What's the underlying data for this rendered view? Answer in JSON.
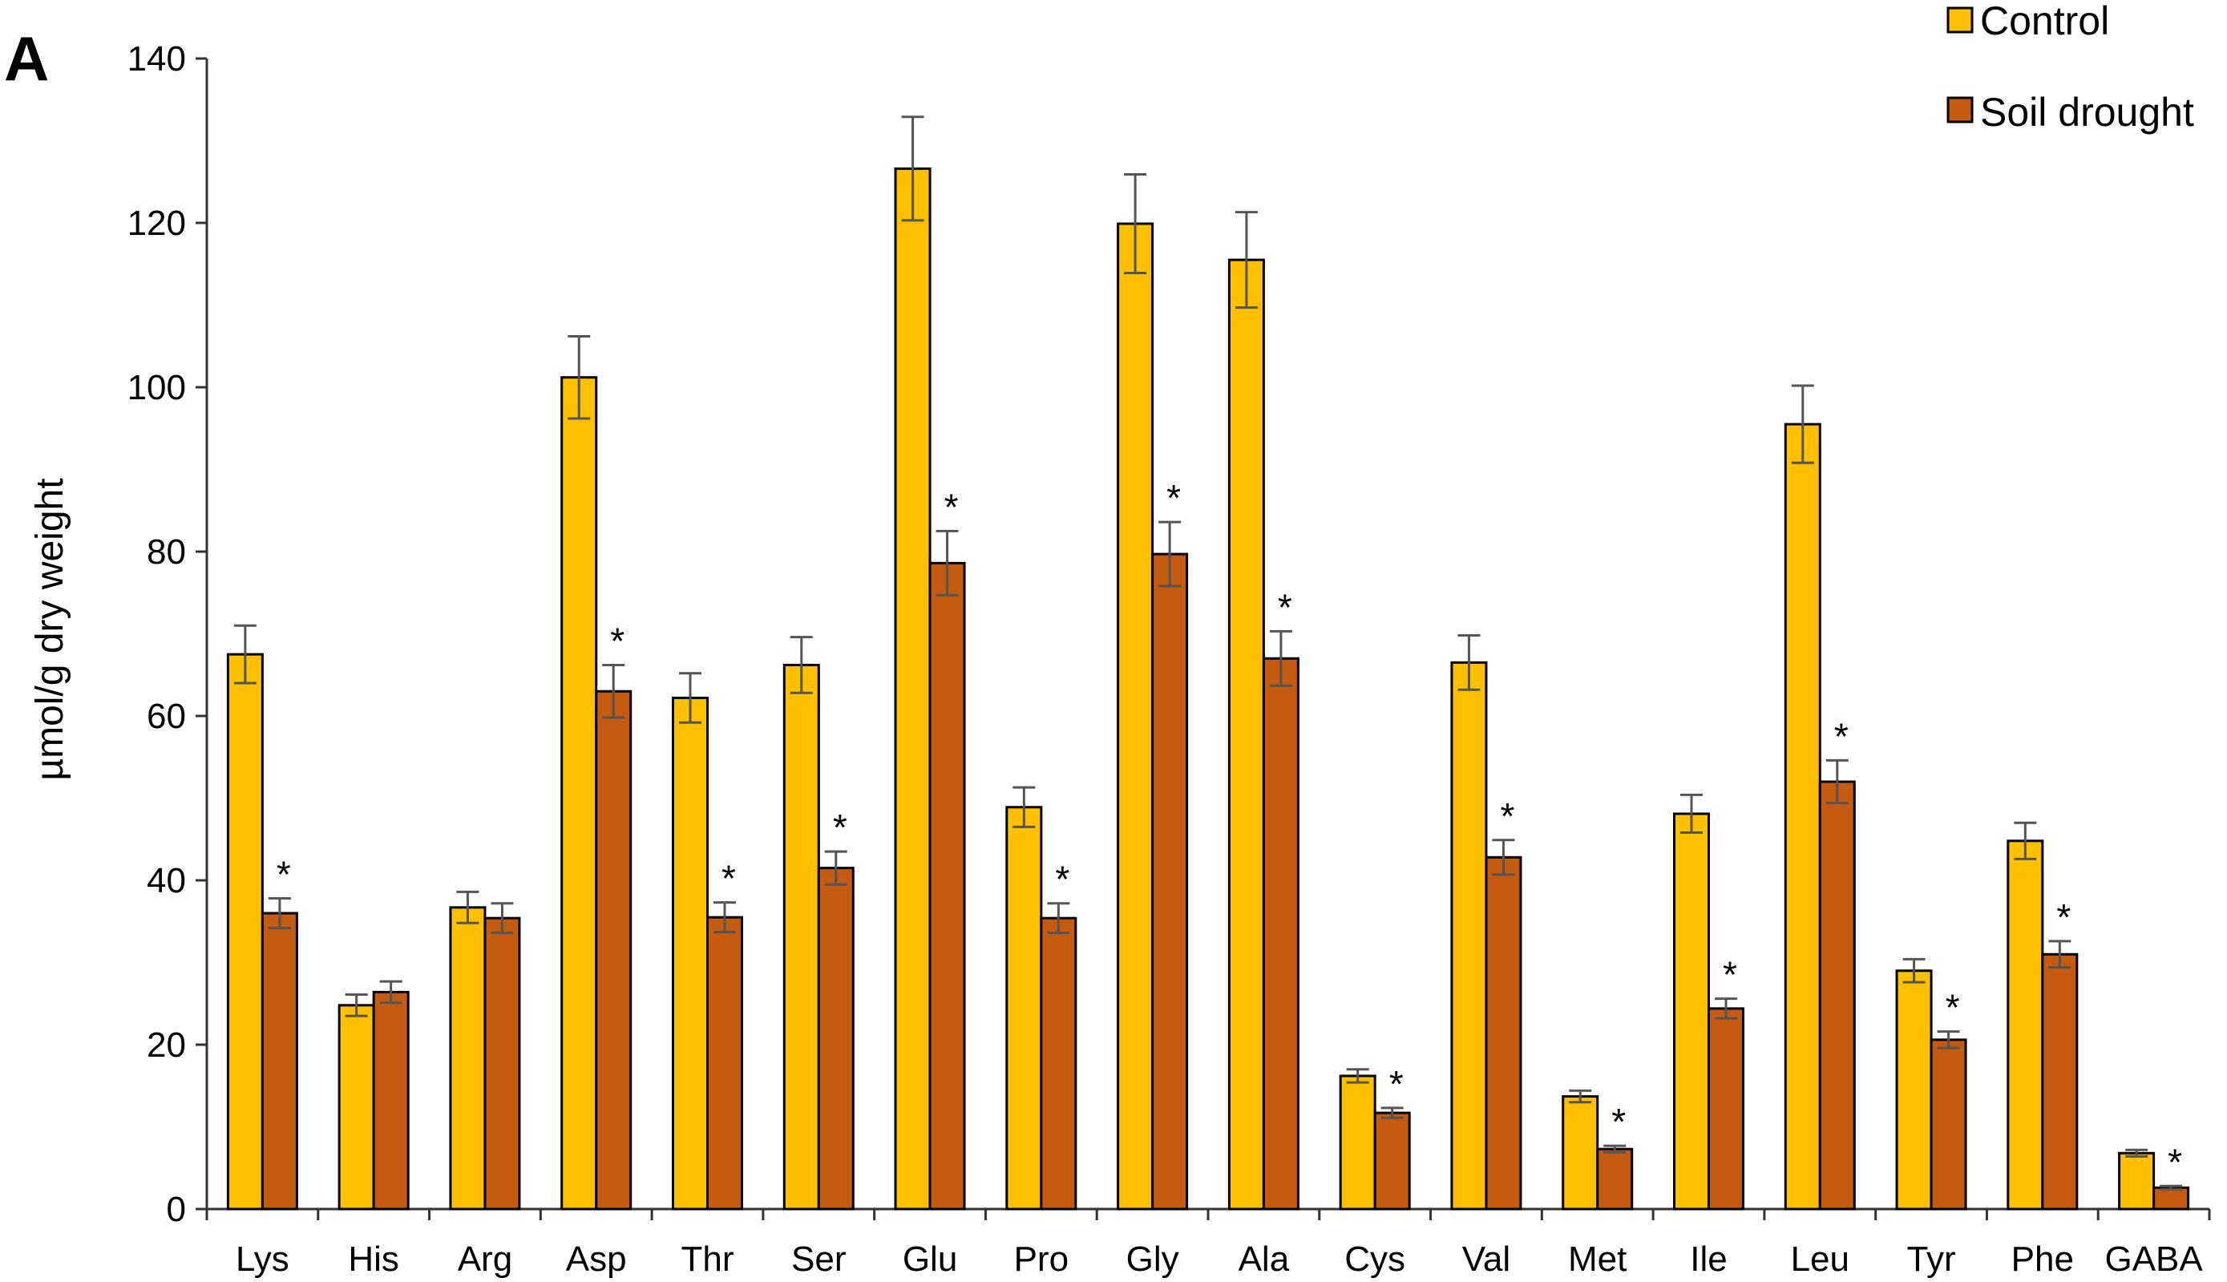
{
  "chart_data": {
    "type": "bar",
    "panel_label": "A",
    "title": "",
    "xlabel": "",
    "ylabel": "µmol/g dry weight",
    "ylim": [
      0,
      140
    ],
    "yticks": [
      0,
      20,
      40,
      60,
      80,
      100,
      120,
      140
    ],
    "ytick_labels": [
      "0",
      "20",
      "40",
      "60",
      "80",
      "100",
      "120",
      "140"
    ],
    "grid": false,
    "legend_position": "top-right",
    "significance_marker": "*",
    "categories": [
      "Lys",
      "His",
      "Arg",
      "Asp",
      "Thr",
      "Ser",
      "Glu",
      "Pro",
      "Gly",
      "Ala",
      "Cys",
      "Val",
      "Met",
      "Ile",
      "Leu",
      "Tyr",
      "Phe",
      "GABA"
    ],
    "series": [
      {
        "name": "Control",
        "color": "#FFC000",
        "values": [
          67.5,
          24.8,
          36.7,
          101.2,
          62.2,
          66.2,
          126.6,
          48.9,
          119.9,
          115.5,
          16.2,
          66.5,
          13.7,
          48.1,
          95.5,
          29.0,
          44.8,
          6.8
        ],
        "errors": [
          3.5,
          1.3,
          1.9,
          5.0,
          3.0,
          3.4,
          6.3,
          2.4,
          6.0,
          5.8,
          0.8,
          3.3,
          0.7,
          2.3,
          4.7,
          1.4,
          2.2,
          0.4
        ]
      },
      {
        "name": "Soil drought",
        "color": "#C55A11",
        "values": [
          36.0,
          26.4,
          35.4,
          63.0,
          35.5,
          41.5,
          78.6,
          35.4,
          79.7,
          67.0,
          11.7,
          42.8,
          7.3,
          24.4,
          52.0,
          20.6,
          31.0,
          2.6
        ],
        "errors": [
          1.8,
          1.3,
          1.8,
          3.2,
          1.8,
          2.0,
          3.9,
          1.8,
          3.9,
          3.3,
          0.6,
          2.1,
          0.4,
          1.2,
          2.6,
          1.0,
          1.6,
          0.2
        ],
        "significant": [
          true,
          false,
          false,
          true,
          true,
          true,
          true,
          true,
          true,
          true,
          true,
          true,
          true,
          true,
          true,
          true,
          true,
          true
        ]
      }
    ]
  }
}
